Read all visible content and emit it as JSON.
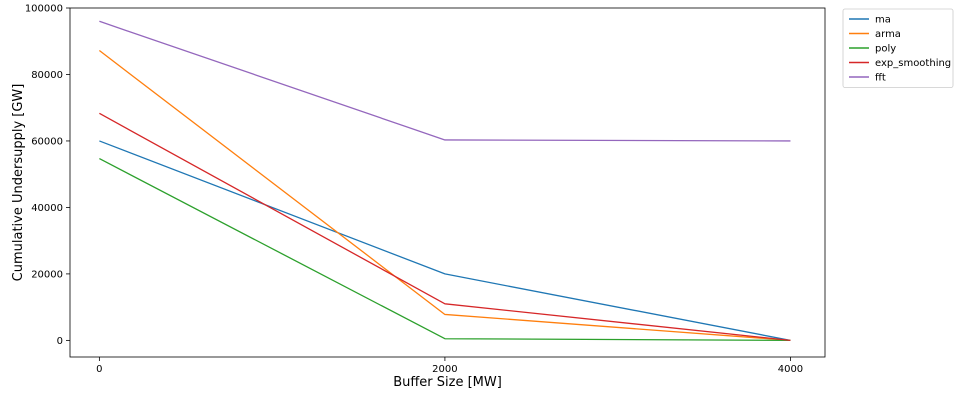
{
  "chart_data": {
    "type": "line",
    "title": "",
    "xlabel": "Buffer Size [MW]",
    "ylabel": "Cumulative Undersupply [GW]",
    "x": [
      0,
      2000,
      4000
    ],
    "x_ticks": [
      0,
      2000,
      4000
    ],
    "y_ticks": [
      0,
      20000,
      40000,
      60000,
      80000,
      100000
    ],
    "xlim": [
      -170,
      4200
    ],
    "ylim": [
      -5000,
      100000
    ],
    "grid": false,
    "legend_position": "upper right, outside plot area",
    "series": [
      {
        "name": "ma",
        "color": "#1f77b4",
        "values": [
          60000,
          20000,
          0
        ]
      },
      {
        "name": "arma",
        "color": "#ff7f0e",
        "values": [
          87200,
          7800,
          0
        ]
      },
      {
        "name": "poly",
        "color": "#2ca02c",
        "values": [
          54700,
          500,
          0
        ]
      },
      {
        "name": "exp_smoothing",
        "color": "#d62728",
        "values": [
          68300,
          11000,
          0
        ]
      },
      {
        "name": "fft",
        "color": "#9467bd",
        "values": [
          96000,
          60300,
          60000
        ]
      }
    ]
  }
}
